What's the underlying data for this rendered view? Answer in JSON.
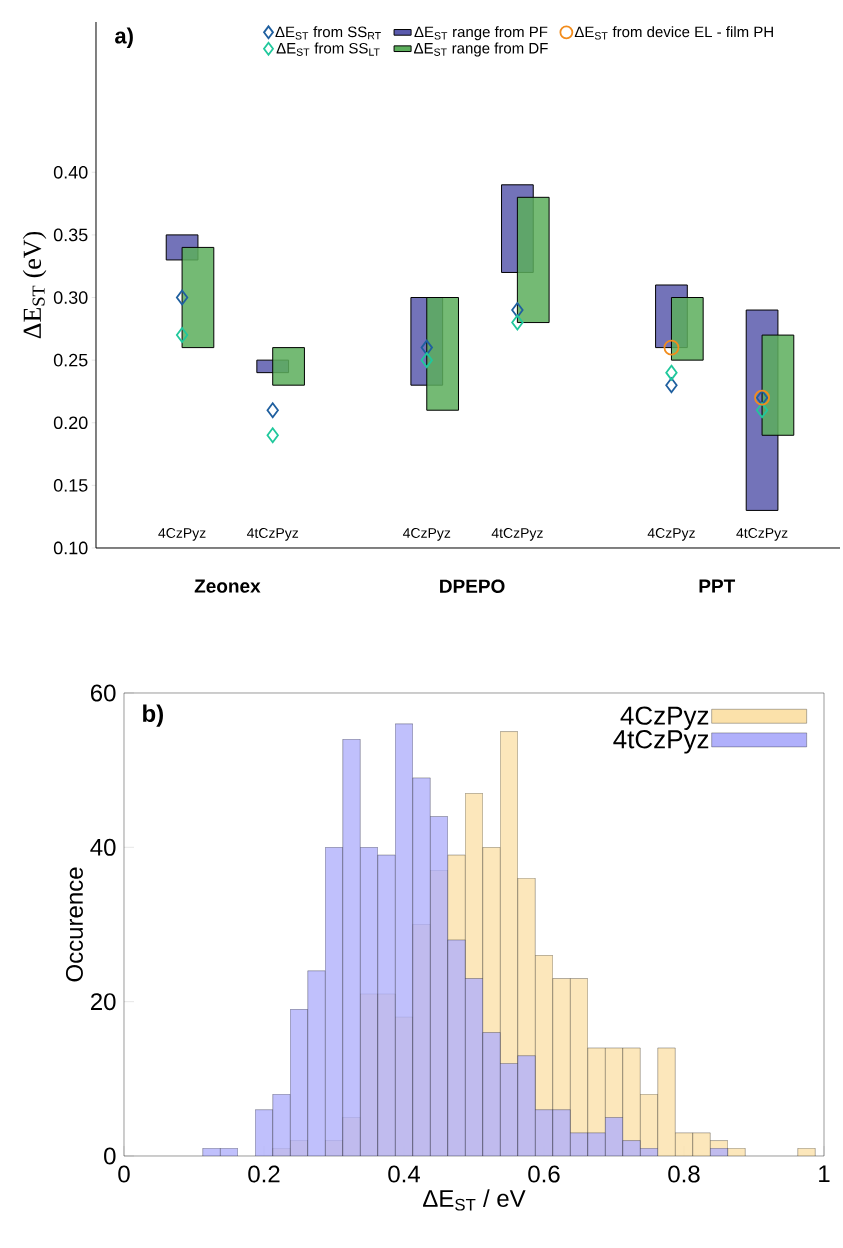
{
  "chart_data": [
    {
      "type": "bar",
      "title": "a)",
      "ylabel": "ΔE$_{ST}$ (eV)",
      "categories": [
        "4CzPyz",
        "4tCzPyz",
        "4CzPyz",
        "4tCzPyz",
        "4CzPyz",
        "4tCzPyz"
      ],
      "series": [
        {
          "name": "ΔE$_{ST}$ from SS$_{RT}$",
          "type": "scatter",
          "marker": "diamond",
          "color": "#1f5f9f",
          "values": [
            0.3,
            0.21,
            0.26,
            0.29,
            0.23,
            0.22
          ]
        },
        {
          "name": "ΔE$_{ST}$ from SS$_{LT}$",
          "type": "scatter",
          "marker": "diamond",
          "color": "#20c89c",
          "values": [
            0.27,
            0.19,
            0.25,
            0.28,
            0.24,
            0.21
          ]
        },
        {
          "name": "ΔE$_{ST}$ range from PF",
          "type": "bar",
          "color": "#5a5aad",
          "base": [
            0.33,
            0.24,
            0.23,
            0.32,
            0.26,
            0.13
          ],
          "values": [
            0.02,
            0.01,
            0.07,
            0.07,
            0.05,
            0.16
          ]
        },
        {
          "name": "ΔE$_{ST}$ range from DF",
          "type": "bar",
          "color": "#5cae5c",
          "base": [
            0.26,
            0.23,
            0.21,
            0.28,
            0.25,
            0.19
          ],
          "values": [
            0.08,
            0.03,
            0.09,
            0.1,
            0.05,
            0.08
          ]
        },
        {
          "name": "ΔE$_{ST}$ from device EL - film PH",
          "type": "scatter",
          "marker": "circle",
          "color": "#f28c1c",
          "values": [
            null,
            null,
            null,
            null,
            0.26,
            0.22
          ]
        }
      ],
      "ylim": [
        0.1,
        0.52
      ],
      "yticks": [
        {
          "value": 0.1,
          "label": "0.10"
        },
        {
          "value": 0.15,
          "label": "0.15"
        },
        {
          "value": 0.2,
          "label": "0.20"
        },
        {
          "value": 0.25,
          "label": "0.25"
        },
        {
          "value": 0.3,
          "label": "0.30"
        },
        {
          "value": 0.35,
          "label": "0.35"
        },
        {
          "value": 0.4,
          "label": "0.40"
        }
      ],
      "legend": "top",
      "annotations": [
        "Zeonex",
        "DPEPO",
        "PPT"
      ]
    },
    {
      "type": "histogram",
      "title": "b)",
      "xlabel": "ΔE$_{ST}$ / eV",
      "ylabel": "Occurence",
      "bins": [
        0.1125,
        0.1375,
        0.1625,
        0.1875,
        0.2125,
        0.2375,
        0.2625,
        0.2875,
        0.3125,
        0.3375,
        0.3625,
        0.3875,
        0.4125,
        0.4375,
        0.4625,
        0.4875,
        0.5125,
        0.5375,
        0.5625,
        0.5875,
        0.6125,
        0.6375,
        0.6625,
        0.6875,
        0.7125,
        0.7375,
        0.7625,
        0.7875,
        0.8125,
        0.8375,
        0.8625,
        0.8875,
        0.9125,
        0.9375,
        0.9625,
        0.9875
      ],
      "series": [
        {
          "name": "4CzPyz",
          "color": "#fbe1aa",
          "values": [
            0,
            0,
            0,
            0,
            1,
            2,
            0,
            2,
            5,
            21,
            21,
            18,
            30,
            37,
            39,
            47,
            40,
            55,
            36,
            26,
            23,
            23,
            14,
            14,
            14,
            8,
            14,
            3,
            3,
            2,
            1,
            0,
            0,
            0,
            1
          ]
        },
        {
          "name": "4tCzPyz",
          "color": "#b0b0fb",
          "values": [
            1,
            1,
            0,
            6,
            8,
            19,
            24,
            40,
            54,
            40,
            39,
            56,
            49,
            44,
            28,
            23,
            16,
            12,
            13,
            6,
            6,
            3,
            3,
            5,
            2,
            1,
            0,
            0,
            0,
            1,
            0,
            0,
            0,
            0,
            0
          ]
        }
      ],
      "xlim": [
        0,
        1
      ],
      "xticks": [
        0,
        0.2,
        0.4,
        0.6,
        0.8,
        1
      ],
      "ylim": [
        0,
        60
      ],
      "yticks": [
        0,
        20,
        40,
        60
      ],
      "legend": "top right"
    }
  ]
}
